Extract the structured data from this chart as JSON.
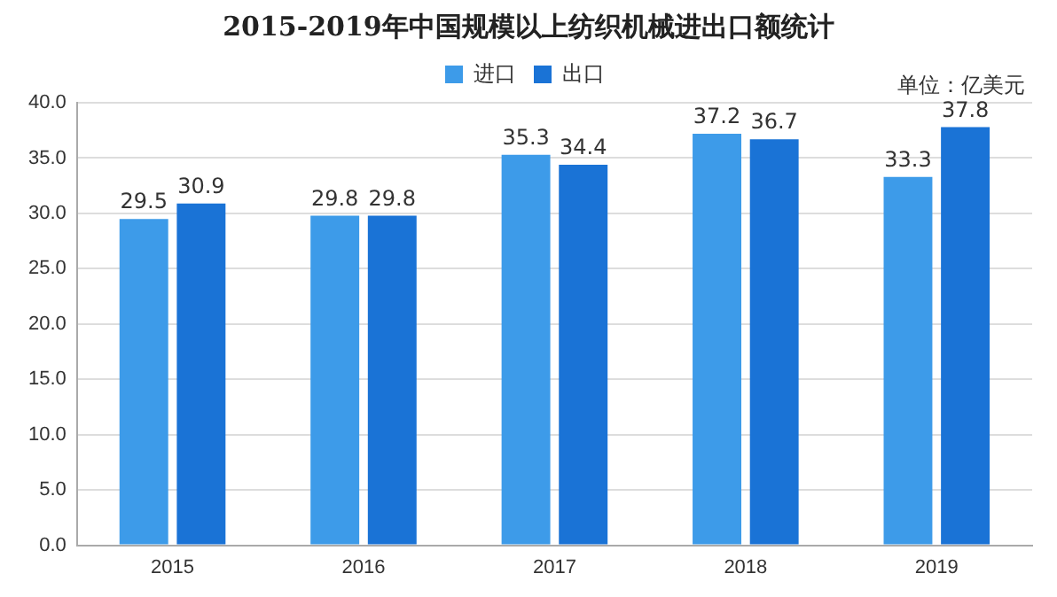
{
  "chart_data": {
    "type": "bar",
    "title": "2015-2019年中国规模以上纺织机械进出口额统计",
    "annotations": [
      "单位：亿美元"
    ],
    "categories": [
      "2015",
      "2016",
      "2017",
      "2018",
      "2019"
    ],
    "series": [
      {
        "name": "进口",
        "color": "#3d9be9",
        "values": [
          29.5,
          29.8,
          35.3,
          37.2,
          33.3
        ]
      },
      {
        "name": "出口",
        "color": "#1a73d6",
        "values": [
          30.9,
          29.8,
          34.4,
          36.7,
          37.8
        ]
      }
    ],
    "ylim": [
      0,
      40
    ],
    "yticks": [
      {
        "value": 0,
        "label": "0.0"
      },
      {
        "value": 5,
        "label": "5.0"
      },
      {
        "value": 10,
        "label": "10.0"
      },
      {
        "value": 15,
        "label": "15.0"
      },
      {
        "value": 20,
        "label": "20.0"
      },
      {
        "value": 25,
        "label": "25.0"
      },
      {
        "value": 30,
        "label": "30.0"
      },
      {
        "value": 35,
        "label": "35.0"
      },
      {
        "value": 40,
        "label": "40.0"
      }
    ],
    "grid": "y",
    "legend": "top",
    "data_labels": true
  }
}
